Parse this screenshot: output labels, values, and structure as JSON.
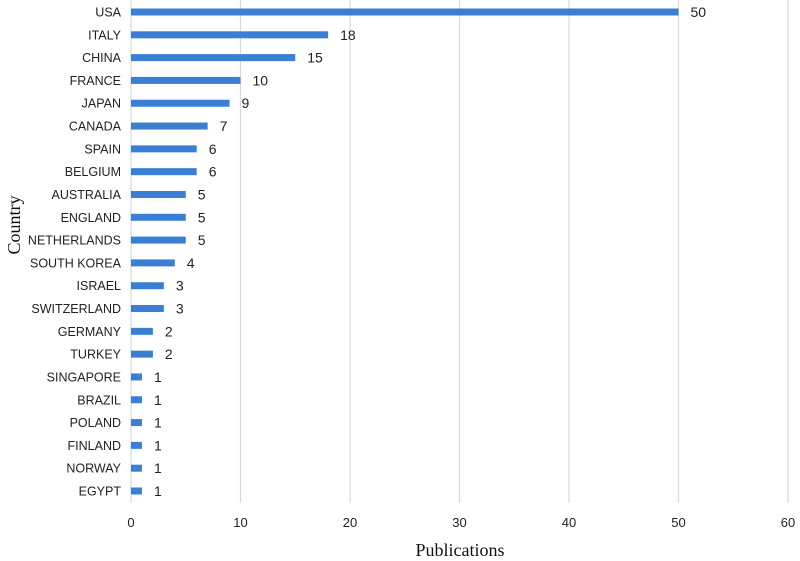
{
  "chart_data": {
    "type": "bar",
    "orientation": "horizontal",
    "categories": [
      "USA",
      "ITALY",
      "CHINA",
      "FRANCE",
      "JAPAN",
      "CANADA",
      "SPAIN",
      "BELGIUM",
      "AUSTRALIA",
      "ENGLAND",
      "NETHERLANDS",
      "SOUTH KOREA",
      "ISRAEL",
      "SWITZERLAND",
      "GERMANY",
      "TURKEY",
      "SINGAPORE",
      "BRAZIL",
      "POLAND",
      "FINLAND",
      "NORWAY",
      "EGYPT"
    ],
    "values": [
      50,
      18,
      15,
      10,
      9,
      7,
      6,
      6,
      5,
      5,
      5,
      4,
      3,
      3,
      2,
      2,
      1,
      1,
      1,
      1,
      1,
      1
    ],
    "xlabel": "Publications",
    "ylabel": "Country",
    "xlim": [
      0,
      60
    ],
    "xticks": [
      0,
      10,
      20,
      30,
      40,
      50,
      60
    ],
    "grid": "vertical",
    "legend": "none",
    "colors": {
      "bar": "#3a7fd5",
      "grid": "#d9d9d9"
    }
  }
}
